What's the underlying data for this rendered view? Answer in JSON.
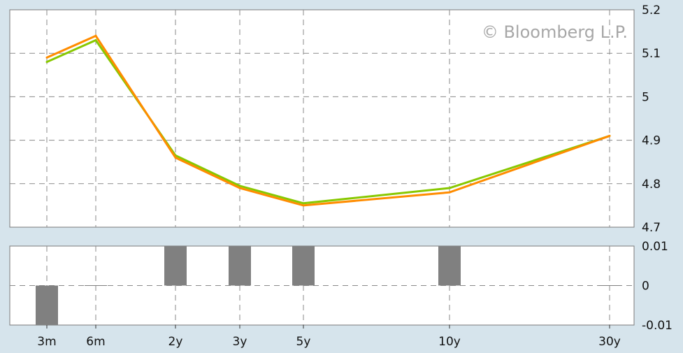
{
  "watermark": "© Bloomberg L.P.",
  "colors": {
    "background": "#d6e4ec",
    "plot_background": "#ffffff",
    "grid": "#8a8a8a",
    "series_green": "#88c800",
    "series_orange": "#ff8c00",
    "bar": "#808080",
    "axis_border": "#7a7a7a"
  },
  "chart_data": [
    {
      "type": "line",
      "x": [
        "3m",
        "6m",
        "2y",
        "3y",
        "5y",
        "10y",
        "30y"
      ],
      "series": [
        {
          "values": [
            5.08,
            5.13,
            4.865,
            4.795,
            4.755,
            4.79,
            4.91
          ]
        },
        {
          "values": [
            5.09,
            5.14,
            4.86,
            4.79,
            4.75,
            4.78,
            4.91
          ]
        }
      ],
      "ylim": [
        4.7,
        5.2
      ],
      "y_ticks": [
        4.7,
        4.8,
        4.9,
        5,
        5.1,
        5.2
      ],
      "y_tick_labels": [
        "4.7",
        "4.8",
        "4.9",
        "5",
        "5.1",
        "5.2"
      ],
      "grid": true,
      "y_axis_side": "right"
    },
    {
      "type": "bar",
      "categories": [
        "3m",
        "6m",
        "2y",
        "3y",
        "5y",
        "10y",
        "30y"
      ],
      "values": [
        -0.01,
        0,
        0.01,
        0.01,
        0.01,
        0.01,
        0
      ],
      "ylim": [
        -0.01,
        0.01
      ],
      "y_ticks": [
        -0.01,
        0,
        0.01
      ],
      "y_tick_labels": [
        "-0.01",
        "0",
        "0.01"
      ],
      "grid": true,
      "y_axis_side": "right"
    }
  ]
}
